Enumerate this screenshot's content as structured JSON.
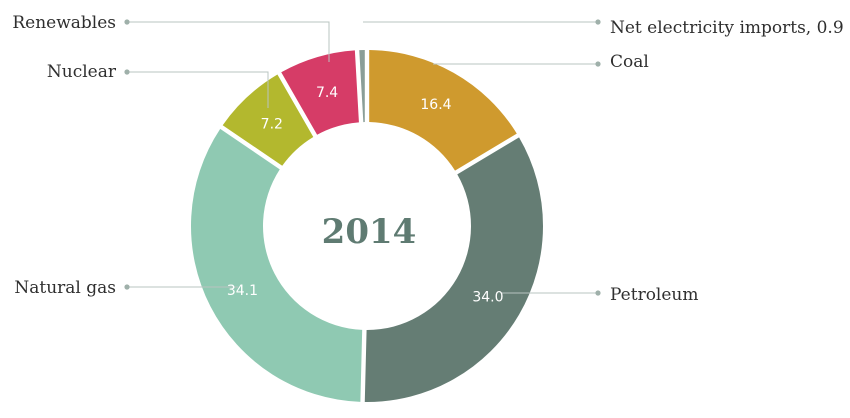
{
  "chart_data": {
    "type": "pie",
    "center_label": "2014",
    "legend": "none",
    "slices": [
      {
        "label": "Coal",
        "value": 16.4,
        "value_label": "16.4",
        "color": "#cf9a2e"
      },
      {
        "label": "Petroleum",
        "value": 34.0,
        "value_label": "34.0",
        "color": "#657d74"
      },
      {
        "label": "Natural gas",
        "value": 34.1,
        "value_label": "34.1",
        "color": "#8fc9b2"
      },
      {
        "label": "Nuclear",
        "value": 7.2,
        "value_label": "7.2",
        "color": "#b3b82e"
      },
      {
        "label": "Renewables",
        "value": 7.4,
        "value_label": "7.4",
        "color": "#d63c67"
      },
      {
        "label": "Net electricity imports, 0.9",
        "value": 0.9,
        "value_label": "",
        "color": "#8a9e98"
      }
    ]
  }
}
